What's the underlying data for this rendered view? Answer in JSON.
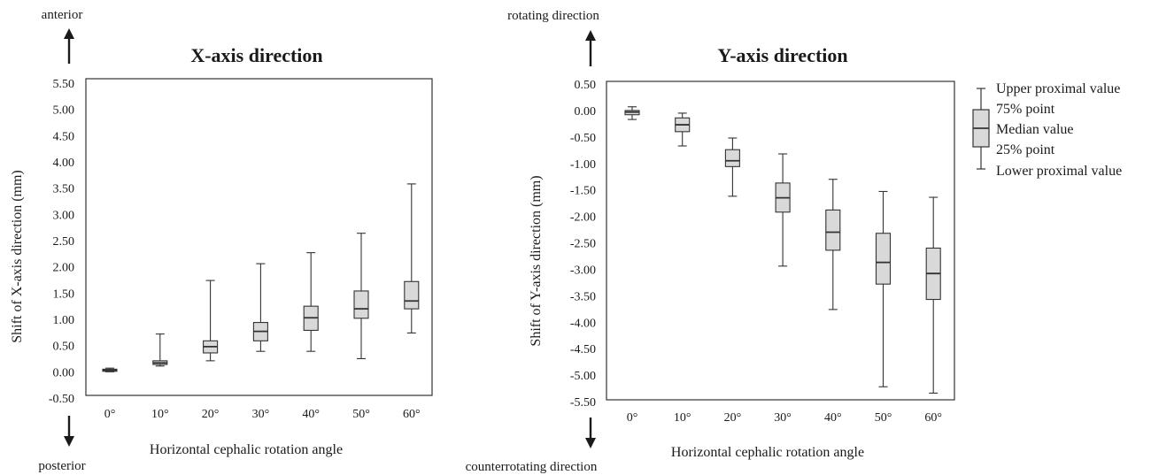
{
  "chart_data": [
    {
      "type": "box",
      "title": "X-axis direction",
      "xlabel": "Horizontal cephalic rotation angle",
      "ylabel": "Shift  of X-axis direction (mm)",
      "top_direction": "anterior",
      "bottom_direction": "posterior",
      "ylim": [
        -0.5,
        5.5
      ],
      "yticks": [
        "5.50",
        "5.00",
        "4.50",
        "4.00",
        "3.50",
        "3.00",
        "2.50",
        "2.00",
        "1.50",
        "1.00",
        "0.50",
        "0.00",
        "-0.50"
      ],
      "categories": [
        "0°",
        "10°",
        "20°",
        "30°",
        "40°",
        "50°",
        "60°"
      ],
      "boxes": [
        {
          "lower": 0.0,
          "q1": 0.01,
          "median": 0.03,
          "q3": 0.05,
          "upper": 0.07
        },
        {
          "lower": 0.11,
          "q1": 0.14,
          "median": 0.17,
          "q3": 0.21,
          "upper": 0.72
        },
        {
          "lower": 0.21,
          "q1": 0.36,
          "median": 0.48,
          "q3": 0.59,
          "upper": 1.74
        },
        {
          "lower": 0.39,
          "q1": 0.59,
          "median": 0.77,
          "q3": 0.94,
          "upper": 2.06
        },
        {
          "lower": 0.39,
          "q1": 0.79,
          "median": 1.03,
          "q3": 1.25,
          "upper": 2.27
        },
        {
          "lower": 0.25,
          "q1": 1.02,
          "median": 1.2,
          "q3": 1.54,
          "upper": 2.64
        },
        {
          "lower": 0.74,
          "q1": 1.2,
          "median": 1.35,
          "q3": 1.72,
          "upper": 3.58
        }
      ]
    },
    {
      "type": "box",
      "title": "Y-axis direction",
      "xlabel": "Horizontal cephalic rotation angle",
      "ylabel": "Shift  of Y-axis direction (mm)",
      "top_direction": "rotating direction",
      "bottom_direction": "counterrotating direction",
      "ylim": [
        -5.5,
        0.5
      ],
      "yticks": [
        "0.50",
        "0.00",
        "-0.50",
        "-1.00",
        "-1.50",
        "-2.00",
        "-2.50",
        "-3.00",
        "-3.50",
        "-4.00",
        "-4.50",
        "-5.00",
        "-5.50"
      ],
      "categories": [
        "0°",
        "10°",
        "20°",
        "30°",
        "40°",
        "50°",
        "60°"
      ],
      "boxes": [
        {
          "lower": -0.17,
          "q1": -0.08,
          "median": -0.03,
          "q3": 0.0,
          "upper": 0.07
        },
        {
          "lower": -0.67,
          "q1": -0.4,
          "median": -0.27,
          "q3": -0.14,
          "upper": -0.05
        },
        {
          "lower": -1.62,
          "q1": -1.06,
          "median": -0.95,
          "q3": -0.74,
          "upper": -0.52
        },
        {
          "lower": -2.94,
          "q1": -1.92,
          "median": -1.65,
          "q3": -1.37,
          "upper": -0.82
        },
        {
          "lower": -3.76,
          "q1": -2.64,
          "median": -2.3,
          "q3": -1.88,
          "upper": -1.3
        },
        {
          "lower": -5.22,
          "q1": -3.28,
          "median": -2.87,
          "q3": -2.32,
          "upper": -1.53
        },
        {
          "lower": -5.34,
          "q1": -3.57,
          "median": -3.08,
          "q3": -2.6,
          "upper": -1.64
        }
      ]
    }
  ],
  "legend": {
    "items": [
      "Upper proximal value",
      "75% point",
      "Median value",
      "25% point",
      "Lower proximal value"
    ]
  },
  "colors": {
    "box_fill": "#d9d9d9",
    "line": "#333333"
  }
}
